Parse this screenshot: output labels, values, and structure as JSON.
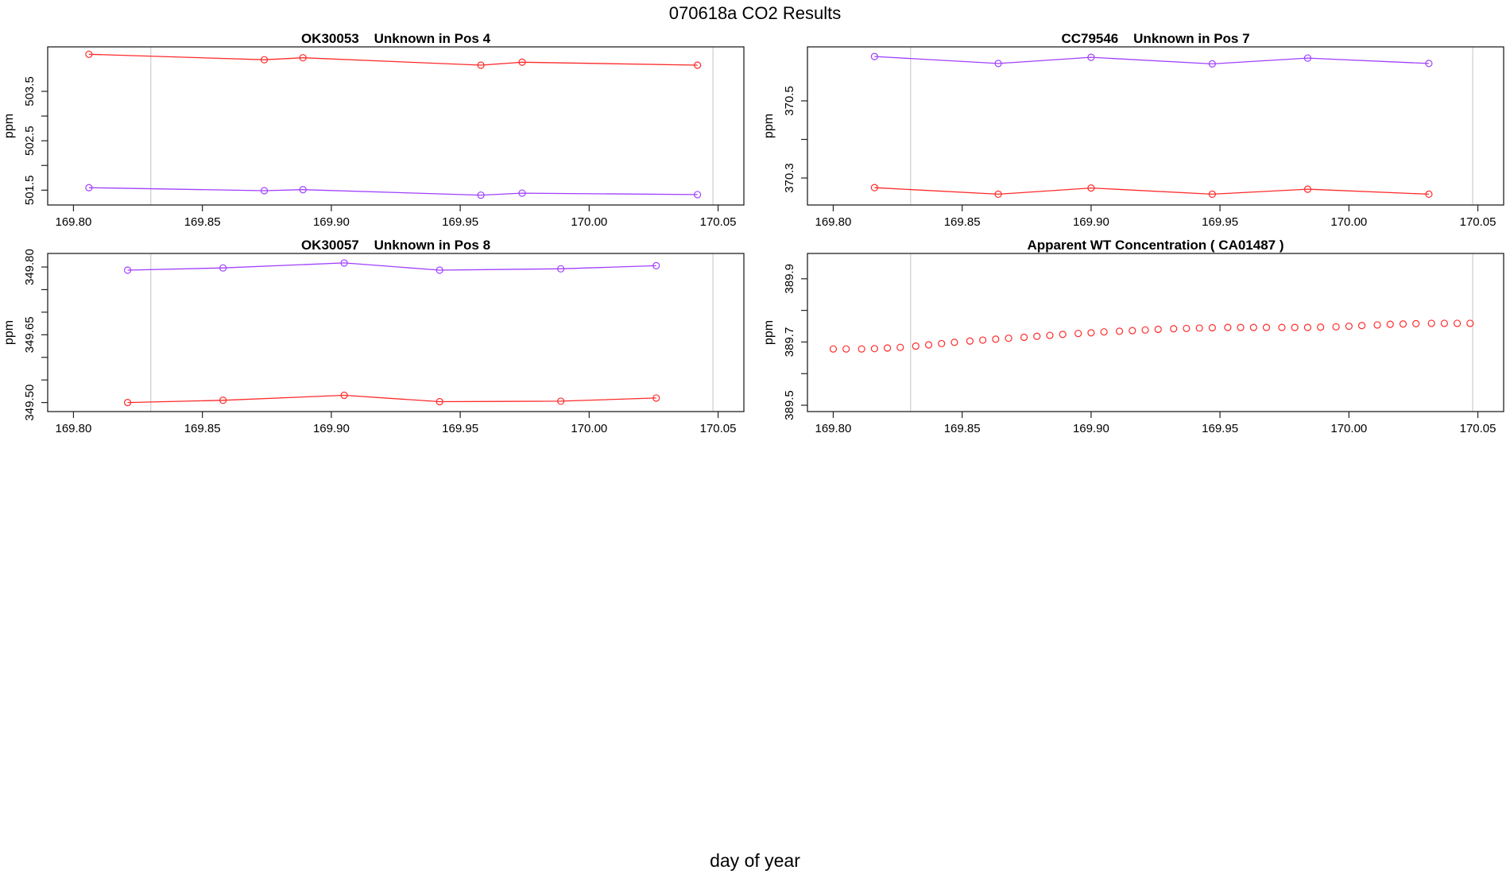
{
  "title": "070618a  CO2 Results",
  "xlabel": "day of year",
  "colors": {
    "red": "#ff2a2a",
    "purple": "#a040ff",
    "frame": "#222222",
    "vline": "#cccccc"
  },
  "chart_data": [
    {
      "type": "line",
      "title": "OK30053    Unknown in Pos 4",
      "ylabel": "ppm",
      "xlim": [
        169.79,
        170.06
      ],
      "ylim": [
        501.2,
        504.4
      ],
      "xticks": [
        169.8,
        169.85,
        169.9,
        169.95,
        170.0,
        170.05
      ],
      "xtick_labels": [
        "169.80",
        "169.85",
        "169.90",
        "169.95",
        "170.00",
        "170.05"
      ],
      "yticks": [
        501.5,
        502.0,
        502.5,
        503.0,
        503.5
      ],
      "ytick_labels": [
        "501.5",
        "",
        "502.5",
        "",
        "503.5"
      ],
      "vlines": [
        169.83,
        170.048
      ],
      "series": [
        {
          "color": "red",
          "x": [
            169.806,
            169.874,
            169.889,
            169.958,
            169.974,
            170.042
          ],
          "y": [
            504.25,
            504.14,
            504.18,
            504.03,
            504.09,
            504.03
          ]
        },
        {
          "color": "purple",
          "x": [
            169.806,
            169.874,
            169.889,
            169.958,
            169.974,
            170.042
          ],
          "y": [
            501.55,
            501.49,
            501.51,
            501.4,
            501.44,
            501.41
          ]
        }
      ]
    },
    {
      "type": "line",
      "title": "CC79546    Unknown in Pos 7",
      "ylabel": "ppm",
      "xlim": [
        169.79,
        170.06
      ],
      "ylim": [
        370.23,
        370.64
      ],
      "xticks": [
        169.8,
        169.85,
        169.9,
        169.95,
        170.0,
        170.05
      ],
      "xtick_labels": [
        "169.80",
        "169.85",
        "169.90",
        "169.95",
        "170.00",
        "170.05"
      ],
      "yticks": [
        370.3,
        370.4,
        370.5
      ],
      "ytick_labels": [
        "370.3",
        "",
        "370.5"
      ],
      "vlines": [
        169.83,
        170.048
      ],
      "series": [
        {
          "color": "purple",
          "x": [
            169.816,
            169.864,
            169.9,
            169.947,
            169.984,
            170.031
          ],
          "y": [
            370.615,
            370.597,
            370.613,
            370.596,
            370.611,
            370.597
          ]
        },
        {
          "color": "red",
          "x": [
            169.816,
            169.864,
            169.9,
            169.947,
            169.984,
            170.031
          ],
          "y": [
            370.275,
            370.258,
            370.274,
            370.258,
            370.271,
            370.258
          ]
        }
      ]
    },
    {
      "type": "line",
      "title": "OK30057    Unknown in Pos 8",
      "ylabel": "ppm",
      "xlim": [
        169.79,
        170.06
      ],
      "ylim": [
        349.48,
        349.83
      ],
      "xticks": [
        169.8,
        169.85,
        169.9,
        169.95,
        170.0,
        170.05
      ],
      "xtick_labels": [
        "169.80",
        "169.85",
        "169.90",
        "169.95",
        "170.00",
        "170.05"
      ],
      "yticks": [
        349.5,
        349.55,
        349.6,
        349.65,
        349.7,
        349.75,
        349.8
      ],
      "ytick_labels": [
        "349.50",
        "",
        "",
        "349.65",
        "",
        "",
        "349.80"
      ],
      "vlines": [
        169.83,
        170.048
      ],
      "series": [
        {
          "color": "purple",
          "x": [
            169.821,
            169.858,
            169.905,
            169.942,
            169.989,
            170.026
          ],
          "y": [
            349.793,
            349.798,
            349.809,
            349.793,
            349.796,
            349.803
          ]
        },
        {
          "color": "red",
          "x": [
            169.821,
            169.858,
            169.905,
            169.942,
            169.989,
            170.026
          ],
          "y": [
            349.5,
            349.505,
            349.516,
            349.502,
            349.503,
            349.51
          ]
        }
      ]
    },
    {
      "type": "scatter",
      "title": "Apparent WT Concentration ( CA01487 )",
      "ylabel": "ppm",
      "xlim": [
        169.79,
        170.06
      ],
      "ylim": [
        389.48,
        389.98
      ],
      "xticks": [
        169.8,
        169.85,
        169.9,
        169.95,
        170.0,
        170.05
      ],
      "xtick_labels": [
        "169.80",
        "169.85",
        "169.90",
        "169.95",
        "170.00",
        "170.05"
      ],
      "yticks": [
        389.5,
        389.6,
        389.7,
        389.8,
        389.9
      ],
      "ytick_labels": [
        "389.5",
        "",
        "389.7",
        "",
        "389.9"
      ],
      "vlines": [
        169.83,
        170.048
      ],
      "series": [
        {
          "color": "red",
          "x": [
            169.8,
            169.805,
            169.811,
            169.816,
            169.821,
            169.826,
            169.832,
            169.837,
            169.842,
            169.847,
            169.853,
            169.858,
            169.863,
            169.868,
            169.874,
            169.879,
            169.884,
            169.889,
            169.895,
            169.9,
            169.905,
            169.911,
            169.916,
            169.921,
            169.926,
            169.932,
            169.937,
            169.942,
            169.947,
            169.953,
            169.958,
            169.963,
            169.968,
            169.974,
            169.979,
            169.984,
            169.989,
            169.995,
            170.0,
            170.005,
            170.011,
            170.016,
            170.021,
            170.026,
            170.032,
            170.037,
            170.042,
            170.047
          ],
          "y": [
            389.678,
            389.678,
            389.678,
            389.679,
            389.681,
            389.683,
            389.687,
            389.691,
            389.695,
            389.699,
            389.703,
            389.706,
            389.709,
            389.712,
            389.715,
            389.718,
            389.721,
            389.724,
            389.727,
            389.729,
            389.732,
            389.734,
            389.736,
            389.738,
            389.74,
            389.742,
            389.743,
            389.744,
            389.745,
            389.746,
            389.746,
            389.746,
            389.746,
            389.746,
            389.746,
            389.746,
            389.747,
            389.748,
            389.75,
            389.752,
            389.754,
            389.756,
            389.757,
            389.758,
            389.759,
            389.759,
            389.759,
            389.759
          ]
        }
      ]
    }
  ]
}
